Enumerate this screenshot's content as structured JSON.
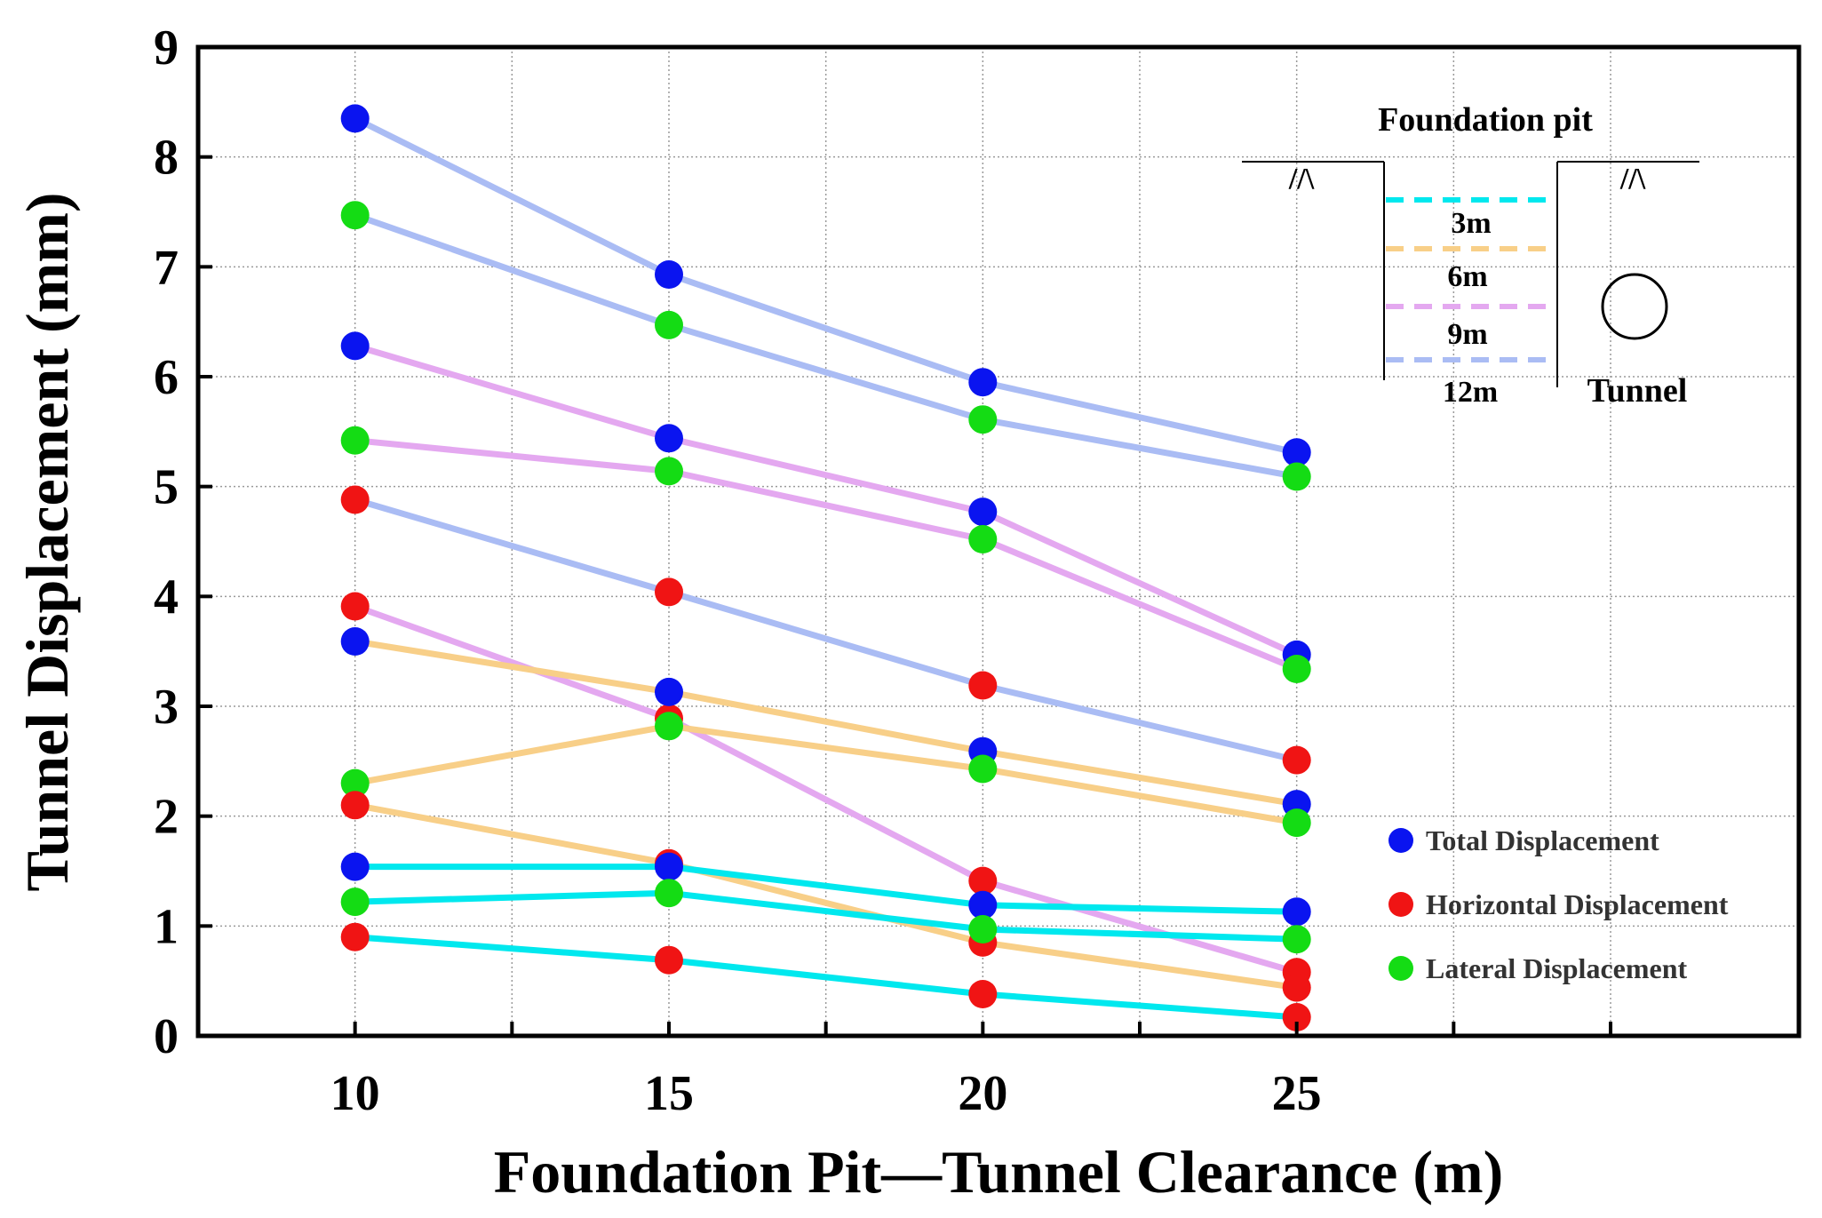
{
  "chart_data": {
    "type": "line",
    "title": "",
    "xlabel": "Foundation Pit—Tunnel Clearance (m)",
    "ylabel": "Tunnel Displacement (mm)",
    "x": [
      10,
      15,
      20,
      25
    ],
    "xlim": [
      7.5,
      33
    ],
    "ylim": [
      0,
      9
    ],
    "x_ticks": [
      10,
      15,
      20,
      25
    ],
    "x_ticks_unlabeled": [
      12.5,
      17.5,
      22.5,
      27.5,
      30
    ],
    "y_ticks": [
      0,
      1,
      2,
      3,
      4,
      5,
      6,
      7,
      8,
      9
    ],
    "grid": true,
    "legend_position": "bottom-right",
    "legend": [
      {
        "label": "Total Displacement",
        "color": "#0a14f0"
      },
      {
        "label": "Horizontal Displacement",
        "color": "#f01414"
      },
      {
        "label": "Lateral Displacement",
        "color": "#14dc14"
      }
    ],
    "depth_colors": {
      "3m": "#00e8ee",
      "6m": "#f8cf88",
      "9m": "#e4a8f0",
      "12m": "#aabcf4"
    },
    "series": [
      {
        "name": "Total Displacement",
        "depth": "12m",
        "values": [
          8.35,
          6.93,
          5.95,
          5.31
        ]
      },
      {
        "name": "Lateral Displacement",
        "depth": "12m",
        "values": [
          7.47,
          6.47,
          5.61,
          5.09
        ]
      },
      {
        "name": "Total Displacement",
        "depth": "9m",
        "values": [
          6.28,
          5.44,
          4.77,
          3.47
        ]
      },
      {
        "name": "Lateral Displacement",
        "depth": "9m",
        "values": [
          5.42,
          5.14,
          4.52,
          3.34
        ]
      },
      {
        "name": "Horizontal Displacement",
        "depth": "12m",
        "values": [
          4.88,
          4.04,
          3.19,
          2.51
        ]
      },
      {
        "name": "Horizontal Displacement",
        "depth": "9m",
        "values": [
          3.91,
          2.89,
          1.41,
          0.58
        ]
      },
      {
        "name": "Total Displacement",
        "depth": "6m",
        "values": [
          3.59,
          3.13,
          2.59,
          2.11
        ]
      },
      {
        "name": "Lateral Displacement",
        "depth": "6m",
        "values": [
          2.3,
          2.82,
          2.43,
          1.94
        ]
      },
      {
        "name": "Horizontal Displacement",
        "depth": "6m",
        "values": [
          2.1,
          1.57,
          0.85,
          0.44
        ]
      },
      {
        "name": "Total Displacement",
        "depth": "3m",
        "values": [
          1.54,
          1.54,
          1.19,
          1.13
        ]
      },
      {
        "name": "Lateral Displacement",
        "depth": "3m",
        "values": [
          1.22,
          1.3,
          0.97,
          0.88
        ]
      },
      {
        "name": "Horizontal Displacement",
        "depth": "3m",
        "values": [
          0.9,
          0.69,
          0.38,
          0.17
        ]
      }
    ]
  },
  "inset": {
    "title": "Foundation pit",
    "tunnel_label": "Tunnel",
    "depth_labels": [
      "3m",
      "6m",
      "9m",
      "12m"
    ],
    "ground_symbol": "//\\"
  }
}
